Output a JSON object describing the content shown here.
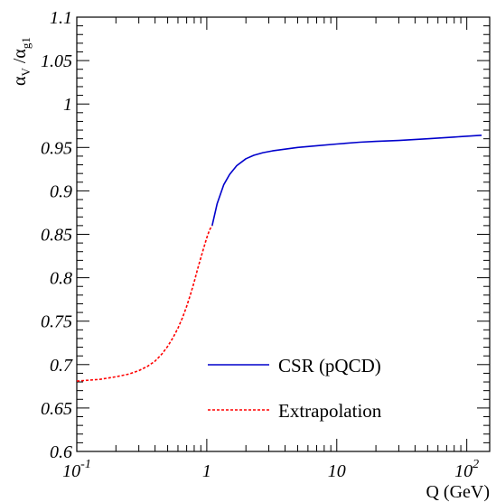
{
  "chart_data": {
    "type": "line",
    "xlabel": "Q (GeV)",
    "ylabel": {
      "main": "α",
      "sub1": "V",
      "sep": " /α",
      "sub2": "g1"
    },
    "x_scale": "log",
    "xlim": [
      0.1,
      150
    ],
    "ylim": [
      0.6,
      1.1
    ],
    "grid": false,
    "legend_position": "bottom-right",
    "x_ticks": [
      {
        "value": 0.1,
        "base": "10",
        "exp": "-1"
      },
      {
        "value": 1,
        "base": "1",
        "exp": ""
      },
      {
        "value": 10,
        "base": "10",
        "exp": ""
      },
      {
        "value": 100,
        "base": "10",
        "exp": "2"
      }
    ],
    "y_ticks": [
      {
        "value": 0.6,
        "label": "0.6"
      },
      {
        "value": 0.65,
        "label": "0.65"
      },
      {
        "value": 0.7,
        "label": "0.7"
      },
      {
        "value": 0.75,
        "label": "0.75"
      },
      {
        "value": 0.8,
        "label": "0.8"
      },
      {
        "value": 0.85,
        "label": "0.85"
      },
      {
        "value": 0.9,
        "label": "0.9"
      },
      {
        "value": 0.95,
        "label": "0.95"
      },
      {
        "value": 1,
        "label": "1"
      },
      {
        "value": 1.05,
        "label": "1.05"
      },
      {
        "value": 1.1,
        "label": "1.1"
      }
    ],
    "series": [
      {
        "name": "CSR (pQCD)",
        "color": "#0000cc",
        "dash": "solid",
        "x": [
          1.1,
          1.2,
          1.35,
          1.5,
          1.7,
          2.0,
          2.3,
          2.7,
          3.2,
          4.0,
          5.0,
          7.0,
          10,
          15,
          20,
          30,
          50,
          80,
          130
        ],
        "y": [
          0.86,
          0.885,
          0.907,
          0.919,
          0.929,
          0.937,
          0.941,
          0.944,
          0.946,
          0.948,
          0.95,
          0.952,
          0.954,
          0.956,
          0.957,
          0.958,
          0.96,
          0.962,
          0.964
        ]
      },
      {
        "name": "Extrapolation",
        "color": "#ff0000",
        "dash": "dashed",
        "x": [
          0.1,
          0.15,
          0.2,
          0.25,
          0.3,
          0.35,
          0.4,
          0.45,
          0.5,
          0.55,
          0.6,
          0.65,
          0.7,
          0.75,
          0.8,
          0.85,
          0.9,
          0.95,
          1.0,
          1.05,
          1.1
        ],
        "y": [
          0.681,
          0.683,
          0.686,
          0.689,
          0.693,
          0.698,
          0.704,
          0.712,
          0.721,
          0.731,
          0.742,
          0.754,
          0.767,
          0.781,
          0.795,
          0.81,
          0.823,
          0.835,
          0.846,
          0.855,
          0.86
        ]
      }
    ]
  }
}
